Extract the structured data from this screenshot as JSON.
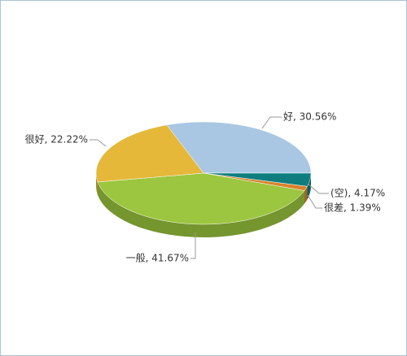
{
  "chart_data": {
    "type": "pie",
    "values": [
      30.56,
      4.17,
      1.39,
      41.67,
      22.22
    ],
    "value_labels": [
      "好, 30.56%",
      "(空), 4.17%",
      "很差, 1.39%",
      "一般, 41.67%",
      "很好, 22.22%"
    ],
    "colors": [
      "#a9c7e3",
      "#0f7d7d",
      "#d9822b",
      "#9cc63f",
      "#e5b83a"
    ]
  }
}
